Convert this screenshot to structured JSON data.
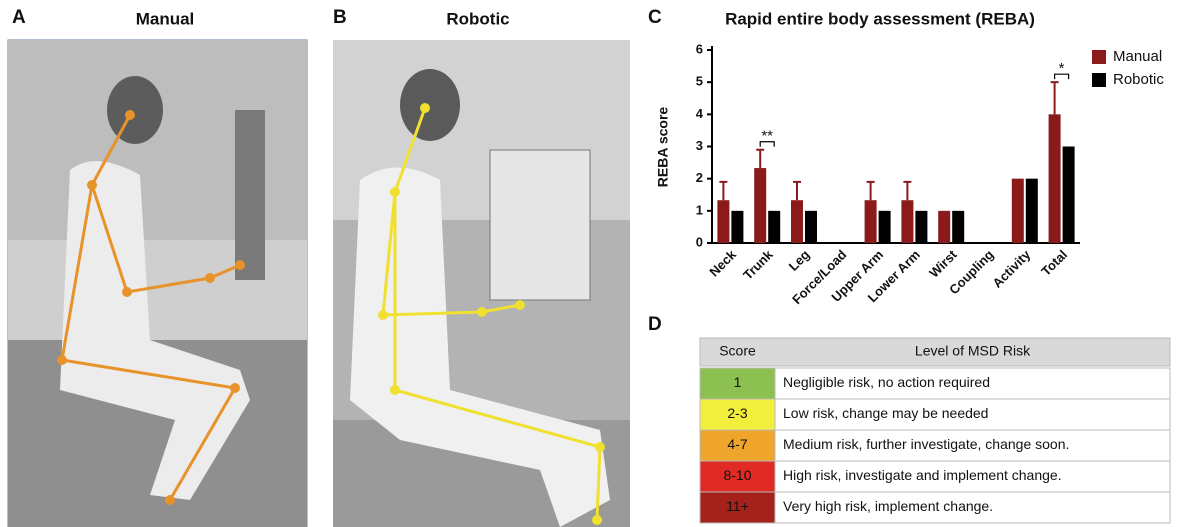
{
  "panels": {
    "a": {
      "letter": "A",
      "title": "Manual"
    },
    "b": {
      "letter": "B",
      "title": "Robotic"
    },
    "c": {
      "letter": "C"
    },
    "d": {
      "letter": "D"
    }
  },
  "chart_data": {
    "type": "bar",
    "title": "Rapid entire body assessment (REBA)",
    "y_label": "REBA score",
    "categories": [
      "Neck",
      "Trunk",
      "Leg",
      "Force/Load",
      "Upper Arm",
      "Lower Arm",
      "Wirst",
      "Coupling",
      "Activity",
      "Total"
    ],
    "series": [
      {
        "name": "Manual",
        "color": "#8b1a1a",
        "values": [
          1.33,
          2.33,
          1.33,
          0,
          1.33,
          1.33,
          1,
          0,
          2,
          4
        ],
        "errors": [
          0.57,
          0.57,
          0.57,
          null,
          0.57,
          0.57,
          null,
          null,
          null,
          1
        ]
      },
      {
        "name": "Robotic",
        "color": "#000000",
        "values": [
          1,
          1,
          1,
          0,
          1,
          1,
          1,
          0,
          2,
          3
        ]
      }
    ],
    "significance": [
      null,
      "**",
      null,
      null,
      null,
      null,
      null,
      null,
      null,
      "*"
    ],
    "ylim": [
      0,
      6
    ],
    "yticks": [
      0,
      1,
      2,
      3,
      4,
      5,
      6
    ],
    "legend": "top-right"
  },
  "table": {
    "header": [
      "Score",
      "Level of MSD Risk"
    ],
    "rows": [
      {
        "score": "1",
        "risk": "Negligible risk, no action required",
        "color": "#8cc152"
      },
      {
        "score": "2-3",
        "risk": "Low risk, change may be needed",
        "color": "#f2ee3c"
      },
      {
        "score": "4-7",
        "risk": "Medium risk, further investigate, change soon.",
        "color": "#efa52c"
      },
      {
        "score": "8-10",
        "risk": "High risk, investigate and implement change.",
        "color": "#e02b25"
      },
      {
        "score": "11+",
        "risk": "Very high risk, implement change.",
        "color": "#a4211c"
      }
    ]
  }
}
